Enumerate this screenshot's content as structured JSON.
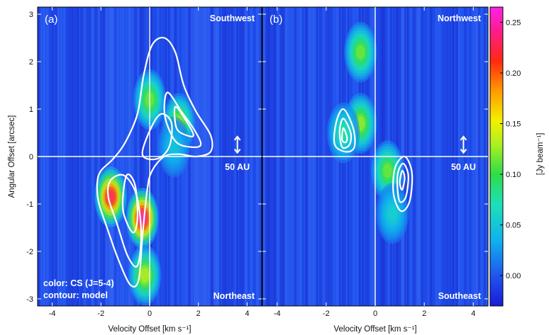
{
  "chart_data": [
    {
      "type": "heatmap",
      "panel_label": "(a)",
      "corner_top": "Southwest",
      "corner_bottom": "Northeast",
      "scale_bar_label": "50 AU",
      "notes": [
        "color: CS (J=5-4)",
        "contour: model"
      ],
      "xlabel": "Velocity Offset [km s⁻¹]",
      "ylabel": "Angular Offset [arcsec]",
      "xlim": [
        -4.6,
        4.6
      ],
      "ylim": [
        -3.15,
        3.15
      ],
      "xticks": [
        -4,
        -2,
        0,
        2,
        4
      ],
      "xtick_labels": [
        "-4",
        "-2",
        "0",
        "2",
        "4"
      ],
      "yticks": [
        -3,
        -2,
        -1,
        0,
        1,
        2,
        3
      ],
      "ytick_labels": [
        "-3",
        "-2",
        "-1",
        "0",
        "1",
        "2",
        "3"
      ],
      "emission_blobs": [
        {
          "v": -1.6,
          "offset": -0.85,
          "peak": 0.24
        },
        {
          "v": -0.3,
          "offset": -1.3,
          "peak": 0.26
        },
        {
          "v": -0.2,
          "offset": -2.5,
          "peak": 0.14
        },
        {
          "v": 0.0,
          "offset": 1.2,
          "peak": 0.12
        },
        {
          "v": 1.2,
          "offset": 0.7,
          "peak": 0.13
        },
        {
          "v": 1.0,
          "offset": 0.2,
          "peak": 0.05
        }
      ],
      "model_contours": [
        [
          [
            -2.0,
            -0.3
          ],
          [
            -1.5,
            -0.05
          ],
          [
            -1.0,
            0.3
          ],
          [
            -0.5,
            0.9
          ],
          [
            -0.25,
            1.7
          ],
          [
            0.1,
            2.35
          ],
          [
            0.6,
            2.5
          ],
          [
            1.05,
            2.2
          ],
          [
            1.4,
            1.5
          ],
          [
            1.9,
            0.95
          ],
          [
            2.5,
            0.45
          ],
          [
            2.5,
            0.1
          ],
          [
            1.9,
            0.0
          ],
          [
            1.2,
            0.05
          ],
          [
            0.6,
            0.0
          ],
          [
            0.1,
            -0.3
          ],
          [
            -0.1,
            -0.7
          ],
          [
            -0.3,
            -1.7
          ],
          [
            -0.45,
            -2.6
          ],
          [
            -0.8,
            -2.7
          ],
          [
            -1.3,
            -2.15
          ],
          [
            -1.75,
            -1.5
          ],
          [
            -2.1,
            -0.95
          ],
          [
            -2.15,
            -0.55
          ]
        ],
        [
          [
            -1.6,
            -0.5
          ],
          [
            -1.05,
            -0.4
          ],
          [
            -0.55,
            -0.8
          ],
          [
            -0.35,
            -1.6
          ],
          [
            -0.5,
            -2.3
          ],
          [
            -0.9,
            -2.1
          ],
          [
            -1.35,
            -1.4
          ],
          [
            -1.7,
            -0.85
          ]
        ],
        [
          [
            0.75,
            1.35
          ],
          [
            1.3,
            0.95
          ],
          [
            1.85,
            0.55
          ],
          [
            2.1,
            0.25
          ],
          [
            1.7,
            0.2
          ],
          [
            1.1,
            0.3
          ],
          [
            0.7,
            0.7
          ],
          [
            0.6,
            1.05
          ]
        ],
        [
          [
            -0.95,
            -0.4
          ],
          [
            -0.6,
            -0.6
          ],
          [
            -0.5,
            -1.3
          ],
          [
            -0.7,
            -1.6
          ],
          [
            -1.1,
            -1.1
          ]
        ],
        [
          [
            1.05,
            1.05
          ],
          [
            1.5,
            0.75
          ],
          [
            1.8,
            0.45
          ],
          [
            1.5,
            0.45
          ],
          [
            1.1,
            0.6
          ]
        ],
        [
          [
            -0.3,
            0.05
          ],
          [
            0.1,
            0.65
          ],
          [
            0.5,
            0.9
          ],
          [
            0.9,
            0.7
          ],
          [
            0.8,
            0.2
          ],
          [
            0.3,
            -0.05
          ]
        ]
      ]
    },
    {
      "type": "heatmap",
      "panel_label": "(b)",
      "corner_top": "Northwest",
      "corner_bottom": "Southeast",
      "scale_bar_label": "50 AU",
      "xlabel": "Velocity Offset [km s⁻¹]",
      "xlim": [
        -4.6,
        4.6
      ],
      "ylim": [
        -3.15,
        3.15
      ],
      "xticks": [
        -4,
        -2,
        0,
        2,
        4
      ],
      "xtick_labels": [
        "-4",
        "-2",
        "0",
        "2",
        "4"
      ],
      "yticks": [
        -3,
        -2,
        -1,
        0,
        1,
        2,
        3
      ],
      "emission_blobs": [
        {
          "v": -0.6,
          "offset": 2.2,
          "peak": 0.12
        },
        {
          "v": -0.6,
          "offset": 0.7,
          "peak": 0.13
        },
        {
          "v": -1.3,
          "offset": 0.5,
          "peak": 0.08
        },
        {
          "v": 0.5,
          "offset": -0.3,
          "peak": 0.12
        },
        {
          "v": 0.7,
          "offset": -1.2,
          "peak": 0.06
        }
      ],
      "model_contours": [
        [
          [
            -1.3,
            1.0
          ],
          [
            -0.9,
            0.6
          ],
          [
            -0.85,
            0.2
          ],
          [
            -1.2,
            0.1
          ],
          [
            -1.65,
            0.25
          ],
          [
            -1.6,
            0.7
          ]
        ],
        [
          [
            -1.3,
            0.8
          ],
          [
            -1.0,
            0.5
          ],
          [
            -1.05,
            0.25
          ],
          [
            -1.35,
            0.2
          ],
          [
            -1.45,
            0.55
          ]
        ],
        [
          [
            -1.3,
            0.6
          ],
          [
            -1.15,
            0.4
          ],
          [
            -1.2,
            0.3
          ],
          [
            -1.35,
            0.35
          ]
        ],
        [
          [
            1.2,
            0.0
          ],
          [
            1.5,
            -0.35
          ],
          [
            1.4,
            -0.95
          ],
          [
            1.05,
            -1.15
          ],
          [
            0.75,
            -0.8
          ],
          [
            0.8,
            -0.25
          ]
        ],
        [
          [
            1.15,
            -0.15
          ],
          [
            1.35,
            -0.4
          ],
          [
            1.25,
            -0.85
          ],
          [
            1.0,
            -0.95
          ],
          [
            0.9,
            -0.6
          ],
          [
            0.95,
            -0.3
          ]
        ],
        [
          [
            1.1,
            -0.3
          ],
          [
            1.2,
            -0.45
          ],
          [
            1.1,
            -0.7
          ],
          [
            1.0,
            -0.55
          ]
        ]
      ]
    }
  ],
  "colorbar": {
    "unit_label": "[Jy beam⁻¹]",
    "vmin": -0.03,
    "vmax": 0.265,
    "ticks": [
      0.0,
      0.05,
      0.1,
      0.15,
      0.2,
      0.25
    ],
    "tick_labels": [
      "0.00",
      "0.05",
      "0.10",
      "0.15",
      "0.20",
      "0.25"
    ]
  }
}
